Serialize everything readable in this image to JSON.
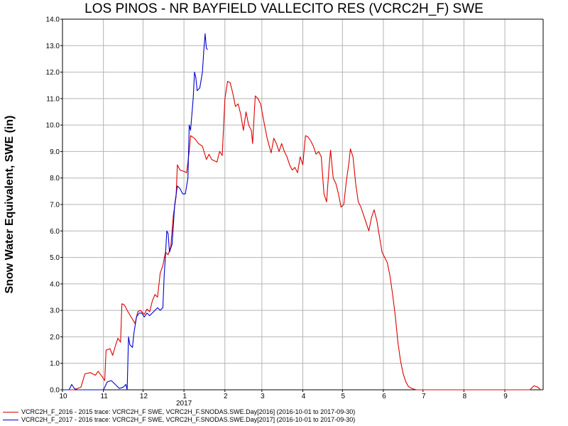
{
  "chart_data": {
    "type": "line",
    "title": "LOS PINOS - NR BAYFIELD VALLECITO RES (VCRC2H_F) SWE",
    "ylabel": "Snow Water Equivalent, SWE (in)",
    "ylim": [
      0,
      14
    ],
    "yticks": [
      "0.0",
      "1.0",
      "2.0",
      "3.0",
      "4.0",
      "5.0",
      "6.0",
      "7.0",
      "8.0",
      "9.0",
      "10.0",
      "11.0",
      "12.0",
      "13.0",
      "14.0"
    ],
    "xlim": [
      "2016-10-01",
      "2017-09-30"
    ],
    "xticks": [
      {
        "label": "10",
        "date": "2016-10-01"
      },
      {
        "label": "11",
        "date": "2016-11-01"
      },
      {
        "label": "12",
        "date": "2016-12-01"
      },
      {
        "label": "1",
        "date": "2017-01-01"
      },
      {
        "label": "2",
        "date": "2017-02-01"
      },
      {
        "label": "3",
        "date": "2017-03-01"
      },
      {
        "label": "4",
        "date": "2017-04-01"
      },
      {
        "label": "5",
        "date": "2017-05-01"
      },
      {
        "label": "6",
        "date": "2017-06-01"
      },
      {
        "label": "7",
        "date": "2017-07-01"
      },
      {
        "label": "8",
        "date": "2017-08-01"
      },
      {
        "label": "9",
        "date": "2017-09-01"
      }
    ],
    "year_label": {
      "text": "2017",
      "date": "2017-01-01"
    },
    "grid": true,
    "legend_position": "bottom-left",
    "series": [
      {
        "name": "VCRC2H_F_2016 - 2015 trace: VCRC2H_F SWE, VCRC2H_F.SNODAS.SWE.Day[2016] (2016-10-01 to 2017-09-30)",
        "color": "#dd0000",
        "points": [
          [
            "2016-10-01",
            0
          ],
          [
            "2016-10-10",
            0
          ],
          [
            "2016-10-15",
            0.1
          ],
          [
            "2016-10-18",
            0.6
          ],
          [
            "2016-10-22",
            0.65
          ],
          [
            "2016-10-26",
            0.55
          ],
          [
            "2016-10-28",
            0.7
          ],
          [
            "2016-10-31",
            0.5
          ],
          [
            "2016-11-02",
            0.35
          ],
          [
            "2016-11-03",
            1.5
          ],
          [
            "2016-11-06",
            1.55
          ],
          [
            "2016-11-08",
            1.3
          ],
          [
            "2016-11-10",
            1.65
          ],
          [
            "2016-11-12",
            1.95
          ],
          [
            "2016-11-14",
            1.8
          ],
          [
            "2016-11-15",
            3.25
          ],
          [
            "2016-11-17",
            3.2
          ],
          [
            "2016-11-19",
            3.0
          ],
          [
            "2016-11-22",
            2.75
          ],
          [
            "2016-11-25",
            2.5
          ],
          [
            "2016-11-27",
            2.95
          ],
          [
            "2016-11-29",
            3.0
          ],
          [
            "2016-12-02",
            2.85
          ],
          [
            "2016-12-04",
            3.05
          ],
          [
            "2016-12-06",
            2.95
          ],
          [
            "2016-12-08",
            3.35
          ],
          [
            "2016-12-10",
            3.6
          ],
          [
            "2016-12-12",
            3.5
          ],
          [
            "2016-12-14",
            4.4
          ],
          [
            "2016-12-16",
            4.7
          ],
          [
            "2016-12-18",
            5.2
          ],
          [
            "2016-12-20",
            5.1
          ],
          [
            "2016-12-22",
            5.4
          ],
          [
            "2016-12-24",
            6.6
          ],
          [
            "2016-12-26",
            7.3
          ],
          [
            "2016-12-27",
            8.5
          ],
          [
            "2016-12-29",
            8.3
          ],
          [
            "2017-01-01",
            8.25
          ],
          [
            "2017-01-03",
            8.2
          ],
          [
            "2017-01-05",
            9.0
          ],
          [
            "2017-01-06",
            9.6
          ],
          [
            "2017-01-09",
            9.5
          ],
          [
            "2017-01-12",
            9.3
          ],
          [
            "2017-01-15",
            9.2
          ],
          [
            "2017-01-18",
            8.7
          ],
          [
            "2017-01-20",
            8.9
          ],
          [
            "2017-01-22",
            8.7
          ],
          [
            "2017-01-26",
            8.6
          ],
          [
            "2017-01-28",
            9.0
          ],
          [
            "2017-01-30",
            8.85
          ],
          [
            "2017-02-01",
            11.0
          ],
          [
            "2017-02-03",
            11.65
          ],
          [
            "2017-02-05",
            11.6
          ],
          [
            "2017-02-07",
            11.2
          ],
          [
            "2017-02-09",
            10.7
          ],
          [
            "2017-02-11",
            10.8
          ],
          [
            "2017-02-13",
            10.4
          ],
          [
            "2017-02-15",
            9.8
          ],
          [
            "2017-02-17",
            10.5
          ],
          [
            "2017-02-19",
            10.0
          ],
          [
            "2017-02-21",
            9.8
          ],
          [
            "2017-02-22",
            9.3
          ],
          [
            "2017-02-24",
            11.1
          ],
          [
            "2017-02-26",
            11.0
          ],
          [
            "2017-02-28",
            10.8
          ],
          [
            "2017-03-03",
            10.0
          ],
          [
            "2017-03-05",
            9.5
          ],
          [
            "2017-03-08",
            8.95
          ],
          [
            "2017-03-10",
            9.5
          ],
          [
            "2017-03-12",
            9.3
          ],
          [
            "2017-03-14",
            9.0
          ],
          [
            "2017-03-16",
            9.3
          ],
          [
            "2017-03-18",
            9.0
          ],
          [
            "2017-03-20",
            8.8
          ],
          [
            "2017-03-22",
            8.5
          ],
          [
            "2017-03-24",
            8.3
          ],
          [
            "2017-03-26",
            8.4
          ],
          [
            "2017-03-28",
            8.2
          ],
          [
            "2017-03-30",
            8.8
          ],
          [
            "2017-04-01",
            8.5
          ],
          [
            "2017-04-03",
            9.6
          ],
          [
            "2017-04-05",
            9.55
          ],
          [
            "2017-04-07",
            9.4
          ],
          [
            "2017-04-09",
            9.2
          ],
          [
            "2017-04-11",
            8.9
          ],
          [
            "2017-04-13",
            9.0
          ],
          [
            "2017-04-15",
            8.8
          ],
          [
            "2017-04-17",
            7.4
          ],
          [
            "2017-04-19",
            7.1
          ],
          [
            "2017-04-21",
            8.5
          ],
          [
            "2017-04-22",
            9.05
          ],
          [
            "2017-04-24",
            8.0
          ],
          [
            "2017-04-26",
            7.8
          ],
          [
            "2017-04-28",
            7.4
          ],
          [
            "2017-04-30",
            6.9
          ],
          [
            "2017-05-02",
            7.0
          ],
          [
            "2017-05-04",
            7.9
          ],
          [
            "2017-05-06",
            8.6
          ],
          [
            "2017-05-07",
            9.1
          ],
          [
            "2017-05-09",
            8.8
          ],
          [
            "2017-05-11",
            7.8
          ],
          [
            "2017-05-13",
            7.1
          ],
          [
            "2017-05-15",
            6.9
          ],
          [
            "2017-05-17",
            6.6
          ],
          [
            "2017-05-19",
            6.3
          ],
          [
            "2017-05-21",
            6.0
          ],
          [
            "2017-05-23",
            6.5
          ],
          [
            "2017-05-25",
            6.8
          ],
          [
            "2017-05-27",
            6.4
          ],
          [
            "2017-05-29",
            5.8
          ],
          [
            "2017-05-31",
            5.2
          ],
          [
            "2017-06-02",
            5.0
          ],
          [
            "2017-06-04",
            4.8
          ],
          [
            "2017-06-06",
            4.3
          ],
          [
            "2017-06-08",
            3.6
          ],
          [
            "2017-06-10",
            2.8
          ],
          [
            "2017-06-12",
            1.8
          ],
          [
            "2017-06-14",
            1.1
          ],
          [
            "2017-06-16",
            0.6
          ],
          [
            "2017-06-18",
            0.3
          ],
          [
            "2017-06-20",
            0.12
          ],
          [
            "2017-06-23",
            0.04
          ],
          [
            "2017-06-26",
            0
          ],
          [
            "2017-09-20",
            0
          ],
          [
            "2017-09-23",
            0.15
          ],
          [
            "2017-09-26",
            0.1
          ],
          [
            "2017-09-28",
            0
          ]
        ]
      },
      {
        "name": "VCRC2H_F_2017 - 2016 trace: VCRC2H_F SWE, VCRC2H_F.SNODAS.SWE.Day[2017] (2016-10-01 to 2017-09-30)",
        "color": "#0000cc",
        "points": [
          [
            "2016-10-01",
            0
          ],
          [
            "2016-10-06",
            0
          ],
          [
            "2016-10-08",
            0.2
          ],
          [
            "2016-10-10",
            0.05
          ],
          [
            "2016-10-12",
            0
          ],
          [
            "2016-11-01",
            0
          ],
          [
            "2016-11-04",
            0.3
          ],
          [
            "2016-11-07",
            0.35
          ],
          [
            "2016-11-10",
            0.2
          ],
          [
            "2016-11-13",
            0.05
          ],
          [
            "2016-11-16",
            0.1
          ],
          [
            "2016-11-18",
            0.2
          ],
          [
            "2016-11-19",
            0.0
          ],
          [
            "2016-11-20",
            2.0
          ],
          [
            "2016-11-21",
            1.7
          ],
          [
            "2016-11-23",
            1.6
          ],
          [
            "2016-11-24",
            2.1
          ],
          [
            "2016-11-26",
            2.75
          ],
          [
            "2016-11-28",
            2.9
          ],
          [
            "2016-11-30",
            2.9
          ],
          [
            "2016-12-02",
            2.75
          ],
          [
            "2016-12-04",
            2.9
          ],
          [
            "2016-12-06",
            2.8
          ],
          [
            "2016-12-08",
            2.9
          ],
          [
            "2016-12-10",
            3.0
          ],
          [
            "2016-12-12",
            3.1
          ],
          [
            "2016-12-14",
            3.0
          ],
          [
            "2016-12-16",
            3.1
          ],
          [
            "2016-12-17",
            4.3
          ],
          [
            "2016-12-18",
            5.1
          ],
          [
            "2016-12-19",
            6.0
          ],
          [
            "2016-12-20",
            5.9
          ],
          [
            "2016-12-21",
            5.2
          ],
          [
            "2016-12-23",
            5.5
          ],
          [
            "2016-12-25",
            7.0
          ],
          [
            "2016-12-27",
            7.7
          ],
          [
            "2016-12-29",
            7.6
          ],
          [
            "2016-12-31",
            7.4
          ],
          [
            "2017-01-02",
            7.4
          ],
          [
            "2017-01-04",
            8.0
          ],
          [
            "2017-01-05",
            10.0
          ],
          [
            "2017-01-06",
            9.8
          ],
          [
            "2017-01-08",
            11.0
          ],
          [
            "2017-01-09",
            12.0
          ],
          [
            "2017-01-10",
            11.8
          ],
          [
            "2017-01-11",
            11.3
          ],
          [
            "2017-01-13",
            11.4
          ],
          [
            "2017-01-15",
            12.0
          ],
          [
            "2017-01-16",
            12.8
          ],
          [
            "2017-01-17",
            13.45
          ],
          [
            "2017-01-18",
            12.9
          ],
          [
            "2017-01-19",
            12.85
          ]
        ]
      }
    ]
  }
}
